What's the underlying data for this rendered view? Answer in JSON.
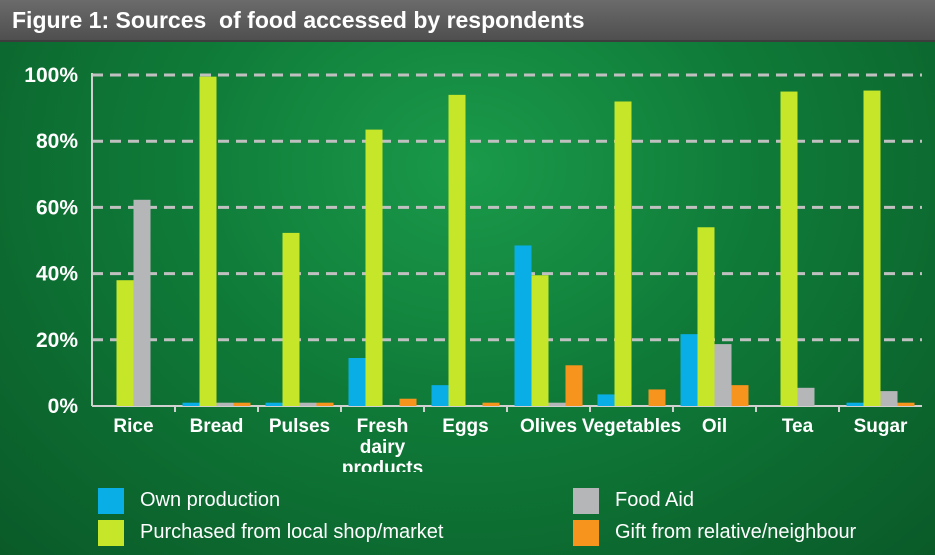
{
  "title": "Figure 1: Sources  of food accessed by respondents",
  "colors": {
    "own": "#0aaee6",
    "purchased": "#c6e62a",
    "food_aid": "#b4b6b8",
    "gift": "#f7941d",
    "gridline": "#c0c0c0",
    "text": "#ffffff"
  },
  "legend": [
    {
      "label": "Own production",
      "color": "#0aaee6"
    },
    {
      "label": "Purchased from local shop/market",
      "color": "#c6e62a"
    },
    {
      "label": "Food Aid",
      "color": "#b4b6b8"
    },
    {
      "label": "Gift from relative/neighbour",
      "color": "#f7941d"
    }
  ],
  "chart_data": {
    "type": "bar",
    "title": "Figure 1: Sources  of food accessed by respondents",
    "categories": [
      [
        "Rice"
      ],
      [
        "Bread"
      ],
      [
        "Pulses"
      ],
      [
        "Fresh",
        "dairy",
        "products"
      ],
      [
        "Eggs"
      ],
      [
        "Olives"
      ],
      [
        "Vegetables"
      ],
      [
        "Oil"
      ],
      [
        "Tea"
      ],
      [
        "Sugar"
      ]
    ],
    "yticks": [
      "0%",
      "20%",
      "40%",
      "60%",
      "80%",
      "100%"
    ],
    "ylim": [
      0,
      100
    ],
    "grid": true,
    "legend_position": "bottom",
    "series": [
      {
        "name": "Own production",
        "color": "#0aaee6",
        "values": [
          0,
          1,
          1,
          14.5,
          6.3,
          48.5,
          3.5,
          21.7,
          0,
          1
        ]
      },
      {
        "name": "Purchased from local shop/market",
        "color": "#c6e62a",
        "values": [
          38,
          99.5,
          52.3,
          83.5,
          94,
          39.5,
          92,
          54,
          95,
          95.3
        ]
      },
      {
        "name": "Food Aid",
        "color": "#b4b6b8",
        "values": [
          62.3,
          1,
          1,
          0,
          0,
          1,
          0,
          18.7,
          5.5,
          4.5
        ]
      },
      {
        "name": "Gift from relative/neighbour",
        "color": "#f7941d",
        "values": [
          0,
          1,
          1,
          2.2,
          1,
          12.3,
          5,
          6.3,
          0,
          1
        ]
      }
    ]
  }
}
